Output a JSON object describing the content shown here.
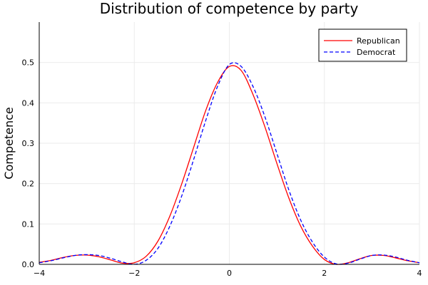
{
  "chart_data": {
    "type": "line",
    "title": "Distribution of competence by party",
    "xlabel": "",
    "ylabel": "Competence",
    "xlim": [
      -4,
      4
    ],
    "ylim": [
      0,
      0.6
    ],
    "xticks": [
      -4,
      -2,
      0,
      2,
      4
    ],
    "yticks": [
      0,
      0.1,
      0.2,
      0.3,
      0.4,
      0.5
    ],
    "xtick_labels": [
      "−4",
      "−2",
      "0",
      "2",
      "4"
    ],
    "ytick_labels": [
      "0.0",
      "0.1",
      "0.2",
      "0.3",
      "0.4",
      "0.5"
    ],
    "grid": true,
    "legend_position": "top-right",
    "series": [
      {
        "name": "Republican",
        "color": "#ff0000",
        "style": "solid",
        "x": [
          -4.0,
          -3.75,
          -3.5,
          -3.25,
          -3.0,
          -2.75,
          -2.5,
          -2.25,
          -2.0,
          -1.75,
          -1.5,
          -1.25,
          -1.0,
          -0.75,
          -0.5,
          -0.25,
          0.0,
          0.25,
          0.5,
          0.75,
          1.0,
          1.25,
          1.5,
          1.75,
          2.0,
          2.25,
          2.5,
          2.75,
          3.0,
          3.25,
          3.5,
          3.75,
          4.0
        ],
        "y": [
          0.005,
          0.01,
          0.017,
          0.022,
          0.023,
          0.019,
          0.011,
          0.003,
          0.004,
          0.02,
          0.058,
          0.12,
          0.2,
          0.29,
          0.38,
          0.45,
          0.49,
          0.48,
          0.42,
          0.34,
          0.25,
          0.165,
          0.095,
          0.045,
          0.012,
          0.0,
          0.004,
          0.014,
          0.022,
          0.022,
          0.016,
          0.009,
          0.004
        ]
      },
      {
        "name": "Democrat",
        "color": "#0000ff",
        "style": "dashed",
        "x": [
          -4.0,
          -3.75,
          -3.5,
          -3.25,
          -3.0,
          -2.75,
          -2.5,
          -2.25,
          -2.0,
          -1.75,
          -1.5,
          -1.25,
          -1.0,
          -0.75,
          -0.5,
          -0.25,
          0.0,
          0.25,
          0.5,
          0.75,
          1.0,
          1.25,
          1.5,
          1.75,
          2.0,
          2.25,
          2.5,
          2.75,
          3.0,
          3.25,
          3.5,
          3.75,
          4.0
        ],
        "y": [
          0.004,
          0.009,
          0.016,
          0.022,
          0.024,
          0.022,
          0.015,
          0.006,
          0.0,
          0.01,
          0.04,
          0.095,
          0.17,
          0.26,
          0.355,
          0.44,
          0.495,
          0.49,
          0.44,
          0.365,
          0.275,
          0.185,
          0.11,
          0.055,
          0.018,
          0.001,
          0.003,
          0.013,
          0.022,
          0.023,
          0.018,
          0.01,
          0.004
        ]
      }
    ]
  }
}
